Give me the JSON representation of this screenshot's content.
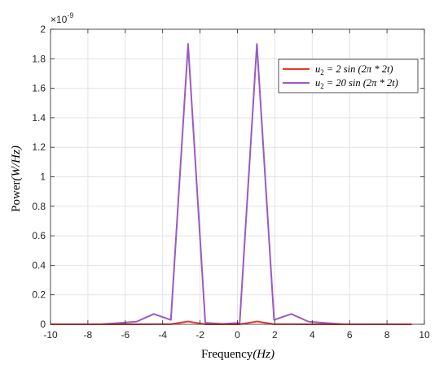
{
  "chart_data": {
    "type": "line",
    "xlabel": "Frequency(Hz)",
    "ylabel": "Power(W/Hz)",
    "xlim": [
      -10,
      10
    ],
    "ylim": [
      0,
      2
    ],
    "y_exponent_label": "×10",
    "y_exponent_power": "-9",
    "x_ticks": [
      "-10",
      "-8",
      "-6",
      "-4",
      "-2",
      "0",
      "2",
      "4",
      "6",
      "8",
      "10"
    ],
    "y_ticks": [
      "0",
      "0.2",
      "0.4",
      "0.6",
      "0.8",
      "1",
      "1.2",
      "1.4",
      "1.6",
      "1.8",
      "2"
    ],
    "grid": true,
    "legend_position": "top-right",
    "series": [
      {
        "name": "u₂ = 2 sin (2π * 2t)",
        "color": "#e8362c",
        "x": [
          -10,
          -9.08,
          -8.16,
          -7.24,
          -6.32,
          -5.4,
          -4.48,
          -3.56,
          -2.64,
          -1.72,
          -0.8,
          0.12,
          1.04,
          1.96,
          2.88,
          3.8,
          4.72,
          5.64,
          6.56,
          7.48,
          8.4,
          9.32
        ],
        "values": [
          0,
          0,
          0,
          0,
          0.0001,
          0.0002,
          0.0007,
          0.0005,
          0.019,
          0.0003,
          0.0001,
          0.0001,
          0.019,
          0.0005,
          0.0007,
          0.0002,
          0.0001,
          0,
          0,
          0,
          0,
          0
        ]
      },
      {
        "name": "u₂ = 20 sin (2π * 2t)",
        "color": "#9b59c4",
        "x": [
          -10,
          -9.08,
          -8.16,
          -7.24,
          -6.32,
          -5.4,
          -4.48,
          -3.56,
          -2.64,
          -1.72,
          -0.8,
          0.12,
          1.04,
          1.96,
          2.88,
          3.8,
          4.72,
          5.64,
          6.56,
          7.48,
          8.4,
          9.32
        ],
        "values": [
          0,
          0,
          0,
          0.001,
          0.009,
          0.018,
          0.07,
          0.03,
          1.9,
          0.01,
          0.003,
          0.01,
          1.9,
          0.03,
          0.07,
          0.018,
          0.009,
          0.001,
          0,
          0,
          0,
          0
        ]
      }
    ]
  },
  "legend": {
    "entries": [
      {
        "lhs": "u",
        "sub": "2",
        "rhs": " = 2 sin (2π * 2t)"
      },
      {
        "lhs": "u",
        "sub": "2",
        "rhs": " = 20 sin (2π * 2t)"
      }
    ]
  },
  "labels": {
    "xlabel_text": "Frequency",
    "xlabel_unit": "(Hz)",
    "ylabel_text": "Power",
    "ylabel_unit": "(W/Hz)"
  }
}
